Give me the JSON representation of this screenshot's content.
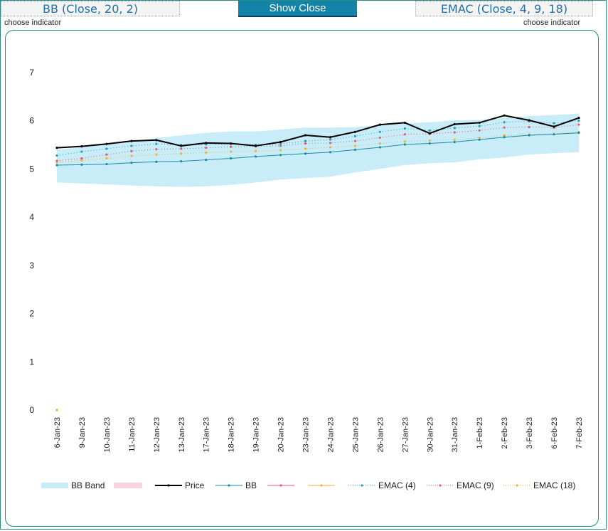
{
  "header": {
    "bb_indicator": "BB (Close, 20, 2)",
    "show_close_label": "Show Close",
    "emac_indicator": "EMAC (Close, 4, 9, 18)",
    "choose_left": "choose indicator",
    "choose_right": "choose indicator"
  },
  "colors": {
    "band": "#c8ecf8",
    "price": "#000000",
    "bb": "#1a8aa8",
    "emac4": "#2a9db8",
    "emac9": "#e05a7a",
    "emac18": "#f2b233",
    "pink_swatch": "#f7d5dc"
  },
  "legend": {
    "bb_band": "BB Band",
    "price": "Price",
    "bb": "BB",
    "emac4": "EMAC (4)",
    "emac9": "EMAC (9)",
    "emac18": "EMAC (18)"
  },
  "chart_data": {
    "type": "line",
    "categories": [
      "6-Jan-23",
      "9-Jan-23",
      "10-Jan-23",
      "11-Jan-23",
      "12-Jan-23",
      "13-Jan-23",
      "17-Jan-23",
      "18-Jan-23",
      "19-Jan-23",
      "20-Jan-23",
      "23-Jan-23",
      "24-Jan-23",
      "25-Jan-23",
      "26-Jan-23",
      "27-Jan-23",
      "30-Jan-23",
      "31-Jan-23",
      "1-Feb-23",
      "2-Feb-23",
      "3-Feb-23",
      "6-Feb-23",
      "7-Feb-23"
    ],
    "ylim": [
      0,
      7
    ],
    "yticks": [
      "0",
      "1",
      "2",
      "3",
      "4",
      "5",
      "6",
      "7"
    ],
    "grid": false,
    "legend_position": "bottom",
    "band": {
      "name": "BB Band",
      "upper": [
        5.4,
        5.45,
        5.52,
        5.58,
        5.64,
        5.7,
        5.75,
        5.78,
        5.78,
        5.82,
        5.86,
        5.86,
        5.87,
        5.91,
        5.95,
        5.97,
        6.01,
        6.02,
        6.06,
        6.1,
        6.12,
        6.15
      ],
      "lower": [
        4.72,
        4.7,
        4.68,
        4.66,
        4.64,
        4.63,
        4.64,
        4.67,
        4.72,
        4.78,
        4.81,
        4.84,
        4.93,
        5.0,
        5.08,
        5.12,
        5.14,
        5.2,
        5.24,
        5.3,
        5.33,
        5.35
      ]
    },
    "series": [
      {
        "name": "Price",
        "values": [
          5.44,
          5.47,
          5.52,
          5.58,
          5.6,
          5.48,
          5.54,
          5.53,
          5.48,
          5.56,
          5.7,
          5.66,
          5.77,
          5.92,
          5.96,
          5.74,
          5.93,
          5.96,
          6.11,
          6.01,
          5.88,
          6.06
        ]
      },
      {
        "name": "BB",
        "values": [
          5.08,
          5.09,
          5.1,
          5.13,
          5.15,
          5.16,
          5.19,
          5.22,
          5.26,
          5.29,
          5.32,
          5.35,
          5.4,
          5.45,
          5.51,
          5.53,
          5.56,
          5.61,
          5.66,
          5.7,
          5.72,
          5.75
        ]
      },
      {
        "name": "EMAC (4)",
        "values": [
          5.28,
          5.36,
          5.42,
          5.48,
          5.52,
          5.5,
          5.51,
          5.52,
          5.5,
          5.52,
          5.58,
          5.61,
          5.68,
          5.77,
          5.84,
          5.8,
          5.85,
          5.89,
          5.97,
          5.99,
          5.95,
          6.0
        ]
      },
      {
        "name": "EMAC (9)",
        "values": [
          5.17,
          5.22,
          5.3,
          5.37,
          5.41,
          5.42,
          5.44,
          5.46,
          5.47,
          5.48,
          5.53,
          5.54,
          5.58,
          5.65,
          5.72,
          5.73,
          5.76,
          5.8,
          5.86,
          5.87,
          5.86,
          5.92
        ]
      },
      {
        "name": "EMAC (18)",
        "values": [
          5.14,
          5.18,
          5.22,
          5.27,
          5.3,
          5.32,
          5.34,
          5.36,
          5.37,
          5.39,
          5.42,
          5.45,
          5.48,
          5.53,
          5.57,
          5.59,
          5.61,
          5.65,
          5.7,
          5.72,
          5.73,
          5.77
        ]
      }
    ],
    "stray_point": {
      "category": "6-Jan-23",
      "value": 0
    }
  }
}
